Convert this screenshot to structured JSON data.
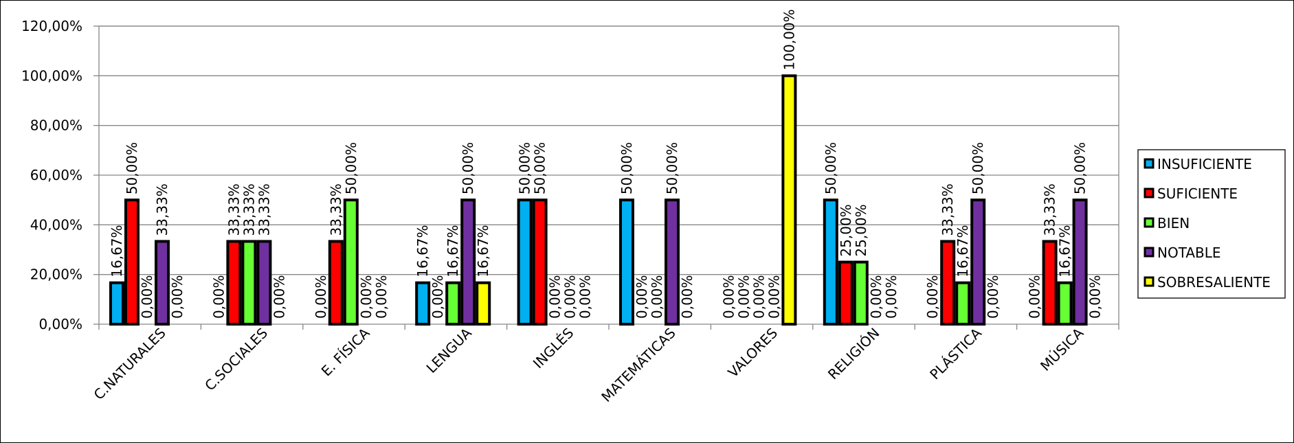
{
  "chart_data": {
    "type": "bar",
    "categories": [
      "C.NATURALES",
      "C.SOCIALES",
      "E. FÍSICA",
      "LENGUA",
      "INGLÉS",
      "MATEMÁTICAS",
      "VALORES",
      "RELIGIÓN",
      "PLÁSTICA",
      "MÚSICA"
    ],
    "series": [
      {
        "name": "INSUFICIENTE",
        "color": "#00B0F0",
        "values": [
          16.67,
          0,
          0,
          16.67,
          50,
          50,
          0,
          50,
          0,
          0
        ],
        "labels": [
          "16,67%",
          "0,00%",
          "0,00%",
          "16,67%",
          "50,00%",
          "50,00%",
          "0,00%",
          "50,00%",
          "0,00%",
          "0,00%"
        ]
      },
      {
        "name": "SUFICIENTE",
        "color": "#FF0000",
        "values": [
          50,
          33.33,
          33.33,
          0,
          50,
          0,
          0,
          25,
          33.33,
          33.33
        ],
        "labels": [
          "50,00%",
          "33,33%",
          "33,33%",
          "0,00%",
          "50,00%",
          "0,00%",
          "0,00%",
          "25,00%",
          "33,33%",
          "33,33%"
        ]
      },
      {
        "name": "BIEN",
        "color": "#66FF33",
        "values": [
          0,
          33.33,
          50,
          16.67,
          0,
          0,
          0,
          25,
          16.67,
          16.67
        ],
        "labels": [
          "0,00%",
          "33,33%",
          "50,00%",
          "16,67%",
          "0,00%",
          "0,00%",
          "0,00%",
          "25,00%",
          "16,67%",
          "16,67%"
        ]
      },
      {
        "name": "NOTABLE",
        "color": "#7030A0",
        "values": [
          33.33,
          33.33,
          0,
          50,
          0,
          50,
          0,
          0,
          50,
          50
        ],
        "labels": [
          "33,33%",
          "33,33%",
          "0,00%",
          "50,00%",
          "0,00%",
          "50,00%",
          "0,00%",
          "0,00%",
          "50,00%",
          "50,00%"
        ]
      },
      {
        "name": "SOBRESALIENTE",
        "color": "#FFFF00",
        "values": [
          0,
          0,
          0,
          16.67,
          0,
          0,
          100,
          0,
          0,
          0
        ],
        "labels": [
          "0,00%",
          "0,00%",
          "0,00%",
          "16,67%",
          "0,00%",
          "0,00%",
          "100,00%",
          "0,00%",
          "0,00%",
          "0,00%"
        ]
      }
    ],
    "y_ticks": [
      "0,00%",
      "20,00%",
      "40,00%",
      "60,00%",
      "80,00%",
      "100,00%",
      "120,00%"
    ],
    "ylim": [
      0,
      120
    ],
    "title": "",
    "xlabel": "",
    "ylabel": "",
    "grid": true,
    "legend_position": "right"
  }
}
